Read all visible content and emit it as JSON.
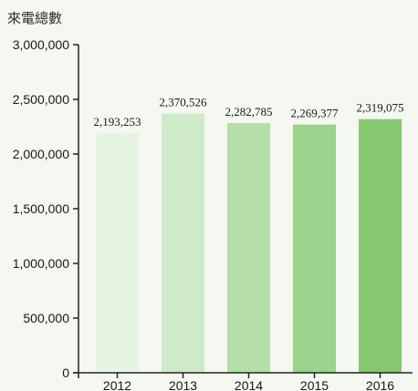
{
  "chart_data": {
    "type": "bar",
    "title": "",
    "xlabel": "",
    "ylabel": "來電總數",
    "categories": [
      "2012",
      "2013",
      "2014",
      "2015",
      "2016"
    ],
    "values": [
      2193253,
      2370526,
      2282785,
      2269377,
      2319075
    ],
    "value_labels": [
      "2,193,253",
      "2,370,526",
      "2,282,785",
      "2,269,377",
      "2,319,075"
    ],
    "ylim": [
      0,
      3000000
    ],
    "yticks": [
      0,
      500000,
      1000000,
      1500000,
      2000000,
      2500000,
      3000000
    ],
    "ytick_labels": [
      "0",
      "500,000",
      "1,000,000",
      "1,500,000",
      "2,000,000",
      "2,500,000",
      "3,000,000"
    ],
    "bar_colors": [
      "#e6f5e2",
      "#cfeac8",
      "#b5deaa",
      "#9cd38d",
      "#86c872"
    ],
    "grid": false,
    "legend": "none"
  }
}
